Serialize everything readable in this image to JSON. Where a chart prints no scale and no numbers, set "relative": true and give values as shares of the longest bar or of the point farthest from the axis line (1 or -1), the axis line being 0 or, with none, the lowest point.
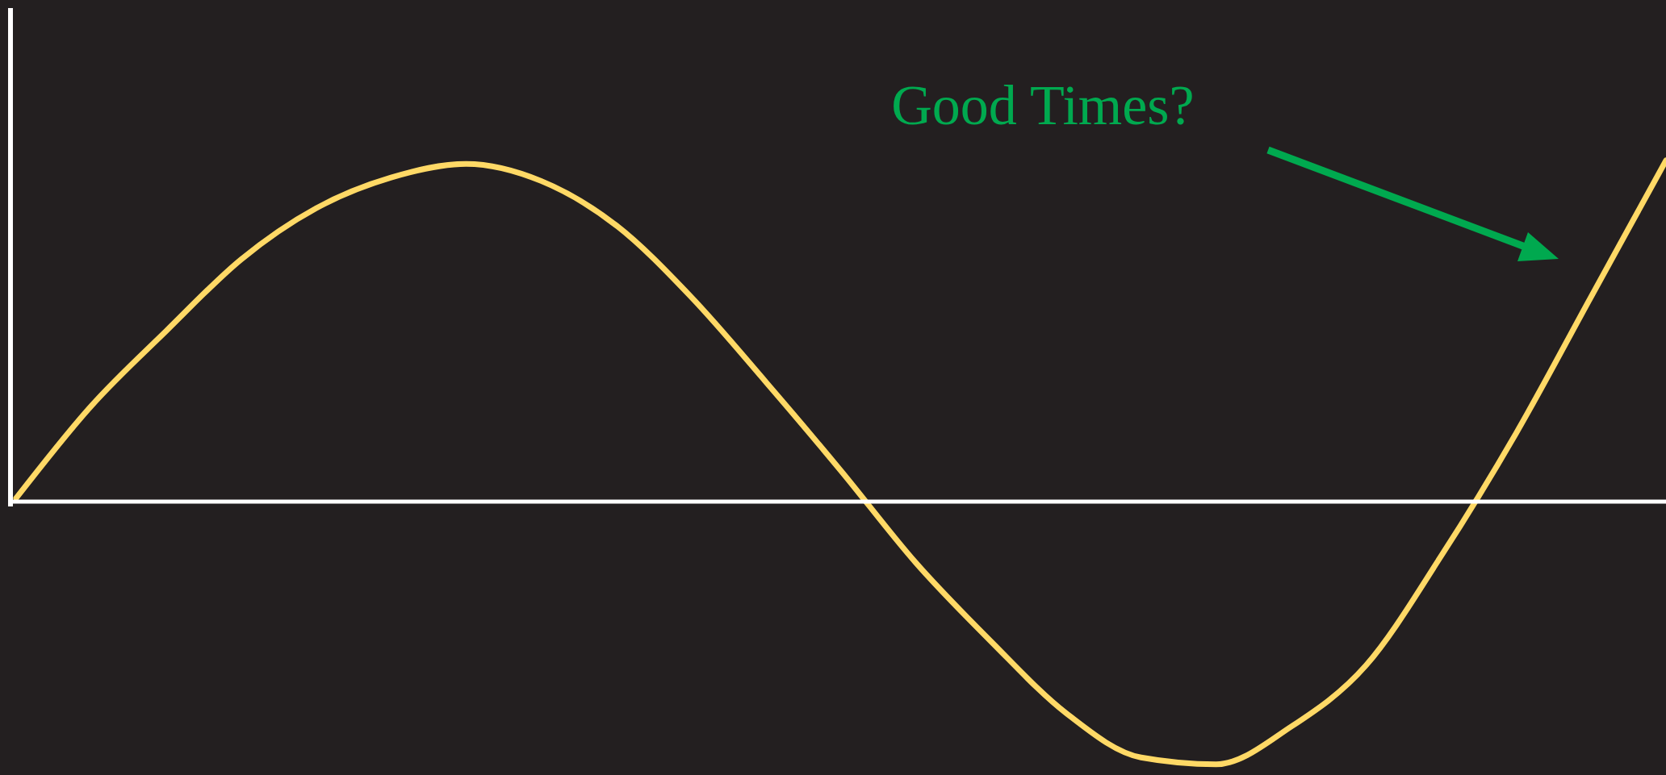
{
  "chart_data": {
    "type": "line",
    "relative": true,
    "categories": [
      null,
      null,
      null,
      null,
      null,
      null,
      null,
      null,
      null,
      null,
      null,
      null,
      null,
      null,
      null,
      null,
      null,
      null,
      null,
      null,
      null,
      null,
      null
    ],
    "series": [
      {
        "color": "#ffd966",
        "values": [
          0.01,
          0.28,
          0.5,
          0.71,
          0.86,
          0.95,
          0.99,
          0.94,
          0.81,
          0.6,
          0.35,
          0.09,
          -0.18,
          -0.41,
          -0.62,
          -0.75,
          -0.77,
          -0.66,
          -0.48,
          -0.16,
          0.2,
          0.6,
          1
        ]
      }
    ],
    "annotations": [
      "Good Times?"
    ]
  }
}
